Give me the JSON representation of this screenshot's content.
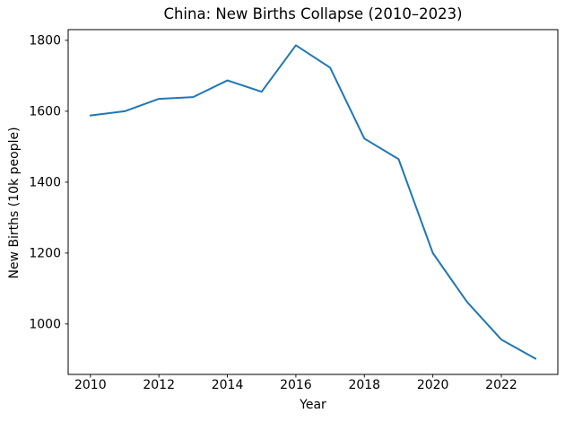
{
  "chart_data": {
    "type": "line",
    "title": "China: New Births Collapse (2010–2023)",
    "xlabel": "Year",
    "ylabel": "New Births (10k people)",
    "x": [
      2010,
      2011,
      2012,
      2013,
      2014,
      2015,
      2016,
      2017,
      2018,
      2019,
      2020,
      2021,
      2022,
      2023
    ],
    "values": [
      1588,
      1600,
      1635,
      1640,
      1687,
      1655,
      1786,
      1723,
      1523,
      1465,
      1200,
      1062,
      956,
      902
    ],
    "xticks": [
      2010,
      2012,
      2014,
      2016,
      2018,
      2020,
      2022
    ],
    "yticks": [
      1000,
      1200,
      1400,
      1600,
      1800
    ],
    "xlim": [
      2009.35,
      2023.65
    ],
    "ylim": [
      857.8,
      1830.2
    ],
    "grid": false,
    "legend": "none",
    "line_color": "#1f77b4",
    "axis_color": "#000000",
    "background_color": "#ffffff"
  }
}
